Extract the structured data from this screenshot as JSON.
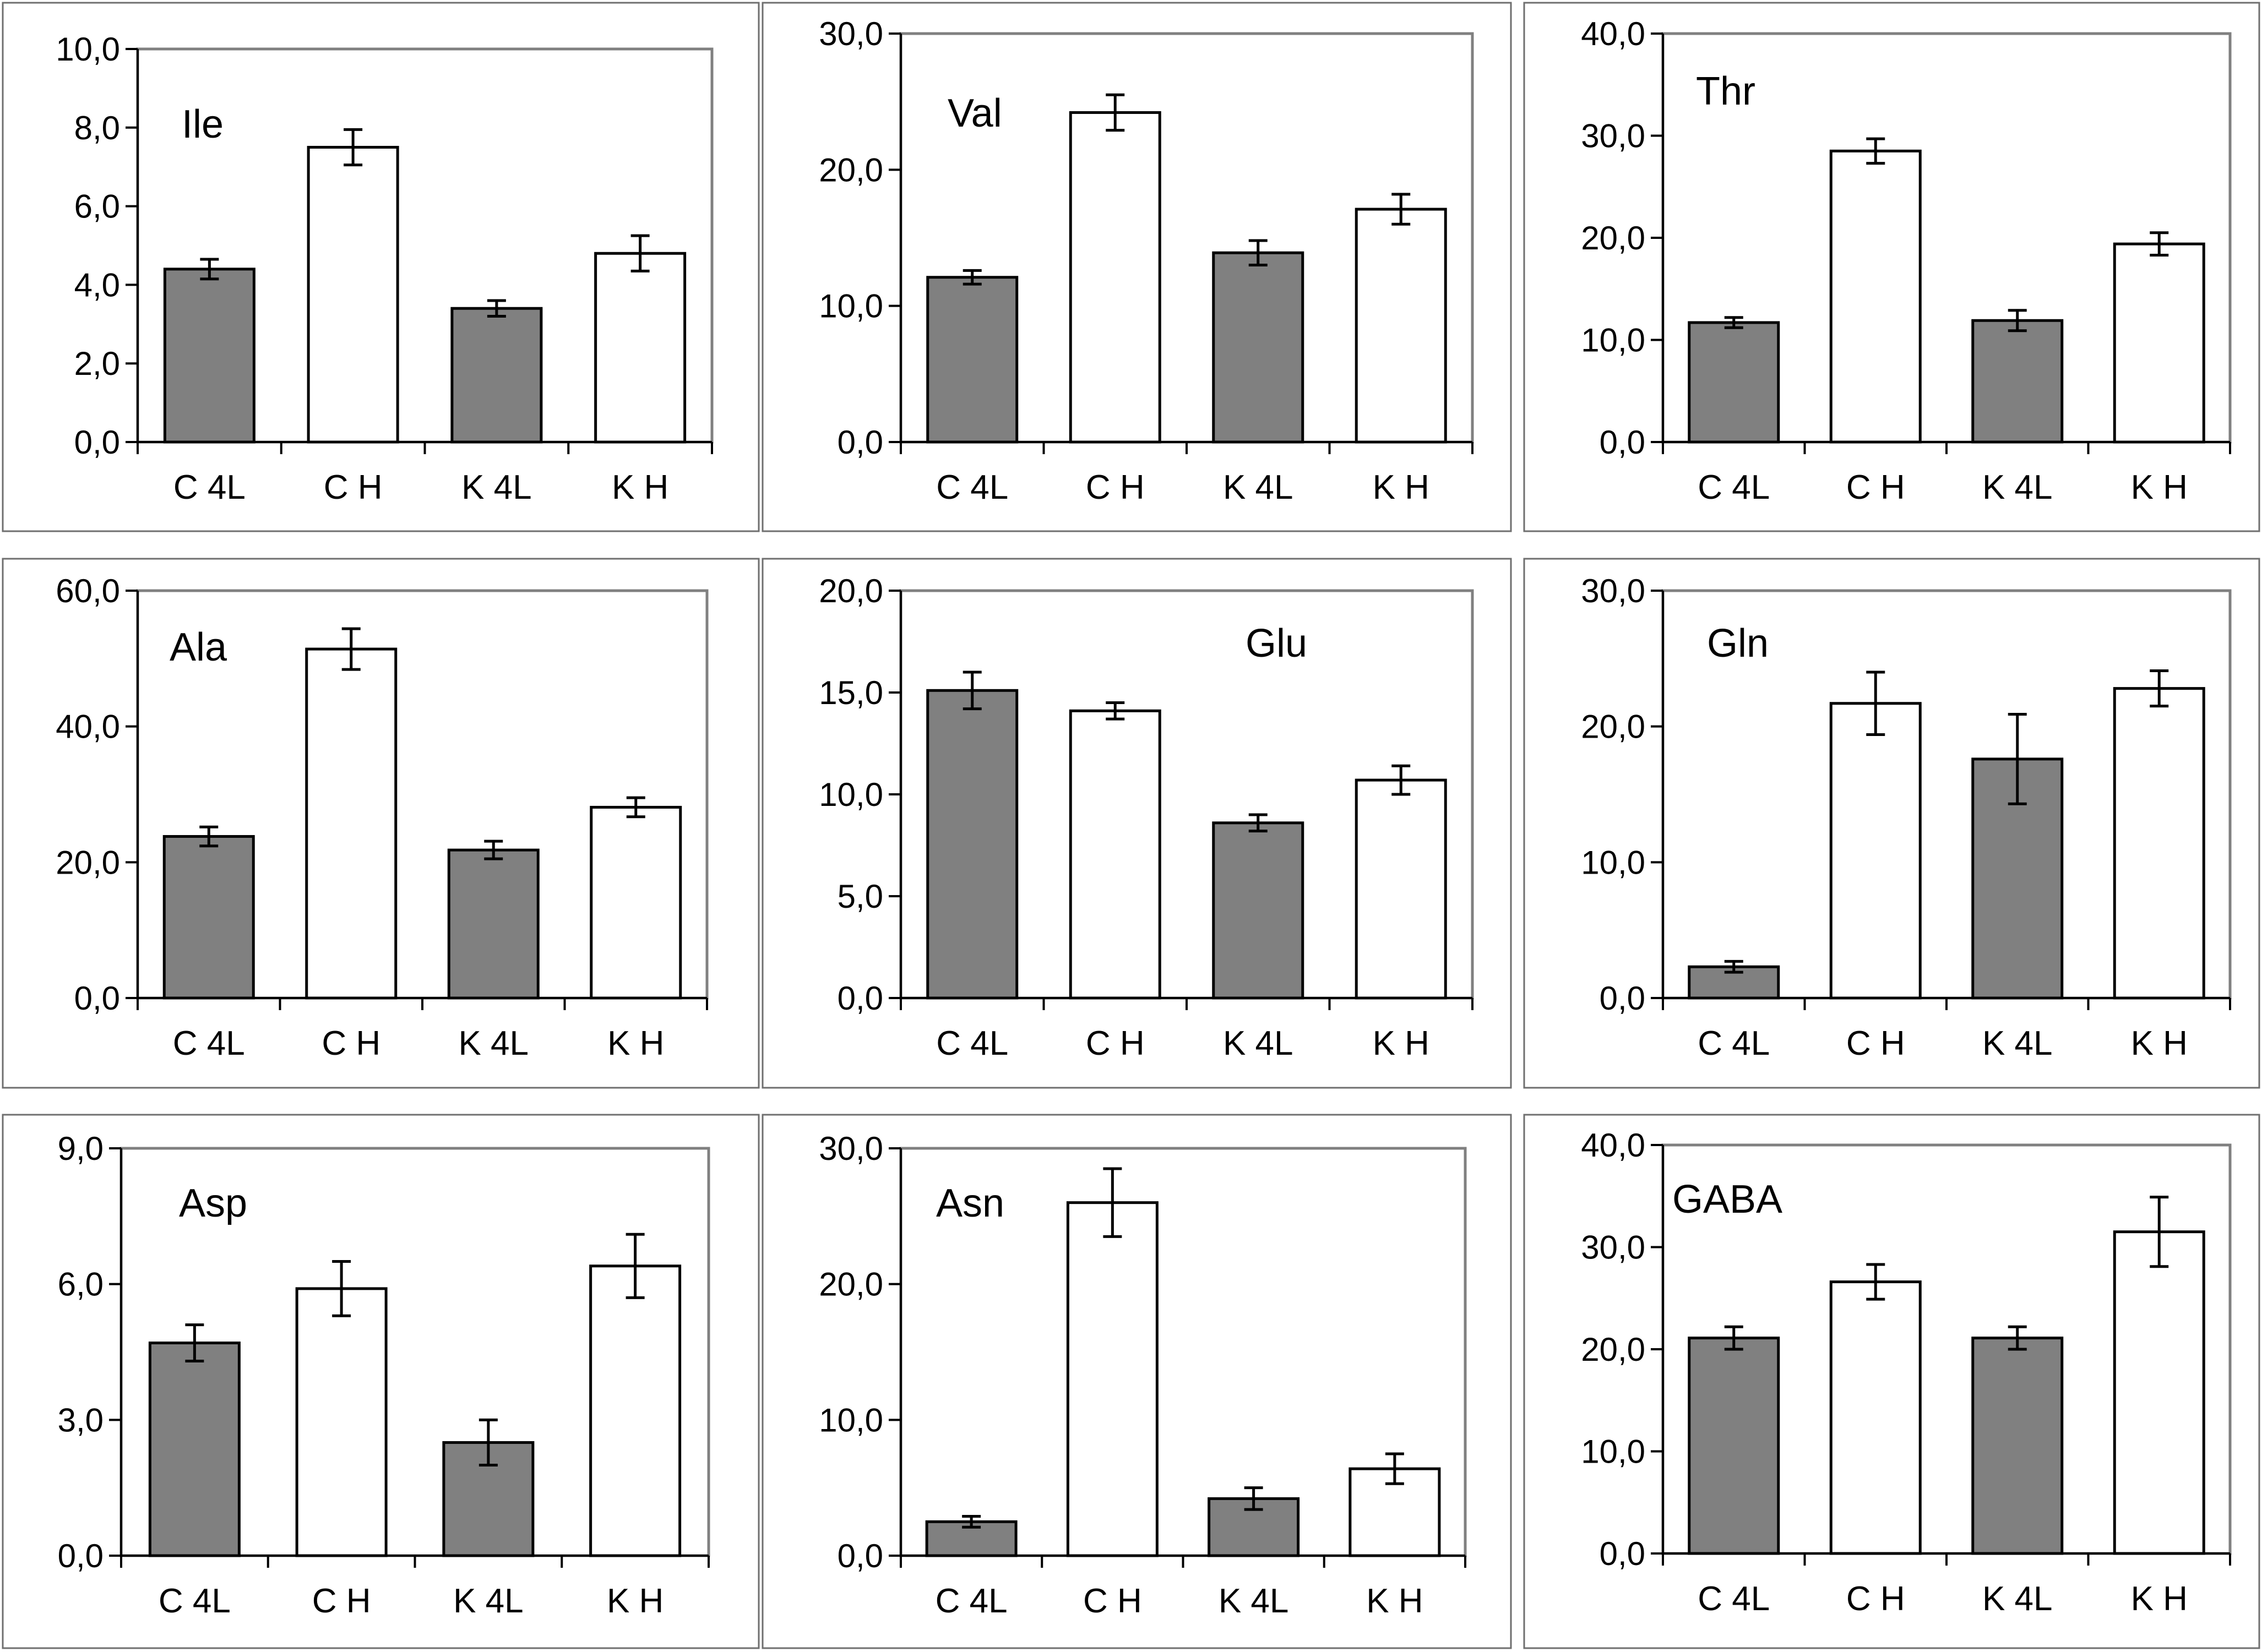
{
  "colors": {
    "filled": "#808080",
    "open": "#ffffff",
    "stroke": "#000000",
    "frame": "#808080"
  },
  "chart_data": [
    {
      "type": "bar",
      "title": "Ile",
      "categories": [
        "C 4L",
        "C H",
        "K 4L",
        "K H"
      ],
      "values": [
        4.4,
        7.5,
        3.4,
        4.8
      ],
      "errors": [
        0.25,
        0.45,
        0.2,
        0.45
      ],
      "fill": [
        "filled",
        "open",
        "filled",
        "open"
      ],
      "ylim": [
        0,
        10
      ],
      "yticks": [
        "0,0",
        "2,0",
        "4,0",
        "6,0",
        "8,0",
        "10,0"
      ],
      "xlabel": "",
      "ylabel": ""
    },
    {
      "type": "bar",
      "title": "Val",
      "categories": [
        "C 4L",
        "C H",
        "K 4L",
        "K H"
      ],
      "values": [
        12.1,
        24.2,
        13.9,
        17.1
      ],
      "errors": [
        0.5,
        1.3,
        0.9,
        1.1
      ],
      "fill": [
        "filled",
        "open",
        "filled",
        "open"
      ],
      "ylim": [
        0,
        30
      ],
      "yticks": [
        "0,0",
        "10,0",
        "20,0",
        "30,0"
      ],
      "xlabel": "",
      "ylabel": ""
    },
    {
      "type": "bar",
      "title": "Thr",
      "categories": [
        "C 4L",
        "C H",
        "K 4L",
        "K H"
      ],
      "values": [
        11.7,
        28.5,
        11.9,
        19.4
      ],
      "errors": [
        0.5,
        1.2,
        1.0,
        1.1
      ],
      "fill": [
        "filled",
        "open",
        "filled",
        "open"
      ],
      "ylim": [
        0,
        40
      ],
      "yticks": [
        "0,0",
        "10,0",
        "20,0",
        "30,0",
        "40,0"
      ],
      "xlabel": "",
      "ylabel": ""
    },
    {
      "type": "bar",
      "title": "Ala",
      "categories": [
        "C 4L",
        "C H",
        "K 4L",
        "K H"
      ],
      "values": [
        23.8,
        51.4,
        21.8,
        28.1
      ],
      "errors": [
        1.4,
        3.0,
        1.3,
        1.4
      ],
      "fill": [
        "filled",
        "open",
        "filled",
        "open"
      ],
      "ylim": [
        0,
        60
      ],
      "yticks": [
        "0,0",
        "20,0",
        "40,0",
        "60,0"
      ],
      "xlabel": "",
      "ylabel": ""
    },
    {
      "type": "bar",
      "title": "Glu",
      "categories": [
        "C 4L",
        "C H",
        "K 4L",
        "K H"
      ],
      "values": [
        15.1,
        14.1,
        8.6,
        10.7
      ],
      "errors": [
        0.9,
        0.4,
        0.4,
        0.7
      ],
      "fill": [
        "filled",
        "open",
        "filled",
        "open"
      ],
      "ylim": [
        0,
        20
      ],
      "yticks": [
        "0,0",
        "5,0",
        "10,0",
        "15,0",
        "20,0"
      ],
      "xlabel": "",
      "ylabel": ""
    },
    {
      "type": "bar",
      "title": "Gln",
      "categories": [
        "C 4L",
        "C H",
        "K 4L",
        "K H"
      ],
      "values": [
        2.3,
        21.7,
        17.6,
        22.8
      ],
      "errors": [
        0.4,
        2.3,
        3.3,
        1.3
      ],
      "fill": [
        "filled",
        "open",
        "filled",
        "open"
      ],
      "ylim": [
        0,
        30
      ],
      "yticks": [
        "0,0",
        "10,0",
        "20,0",
        "30,0"
      ],
      "xlabel": "",
      "ylabel": ""
    },
    {
      "type": "bar",
      "title": "Asp",
      "categories": [
        "C 4L",
        "C H",
        "K 4L",
        "K H"
      ],
      "values": [
        4.7,
        5.9,
        2.5,
        6.4
      ],
      "errors": [
        0.4,
        0.6,
        0.5,
        0.7
      ],
      "fill": [
        "filled",
        "open",
        "filled",
        "open"
      ],
      "ylim": [
        0,
        9
      ],
      "yticks": [
        "0,0",
        "3,0",
        "6,0",
        "9,0"
      ],
      "xlabel": "",
      "ylabel": ""
    },
    {
      "type": "bar",
      "title": "Asn",
      "categories": [
        "C 4L",
        "C H",
        "K 4L",
        "K H"
      ],
      "values": [
        2.5,
        26.0,
        4.2,
        6.4
      ],
      "errors": [
        0.4,
        2.5,
        0.8,
        1.1
      ],
      "fill": [
        "filled",
        "open",
        "filled",
        "open"
      ],
      "ylim": [
        0,
        30
      ],
      "yticks": [
        "0,0",
        "10,0",
        "20,0",
        "30,0"
      ],
      "xlabel": "",
      "ylabel": ""
    },
    {
      "type": "bar",
      "title": "GABA",
      "categories": [
        "C 4L",
        "C H",
        "K 4L",
        "K H"
      ],
      "values": [
        21.1,
        26.6,
        21.1,
        31.5
      ],
      "errors": [
        1.1,
        1.7,
        1.1,
        3.4
      ],
      "fill": [
        "filled",
        "open",
        "filled",
        "open"
      ],
      "ylim": [
        0,
        40
      ],
      "yticks": [
        "0,0",
        "10,0",
        "20,0",
        "30,0",
        "40,0"
      ],
      "xlabel": "",
      "ylabel": ""
    }
  ]
}
